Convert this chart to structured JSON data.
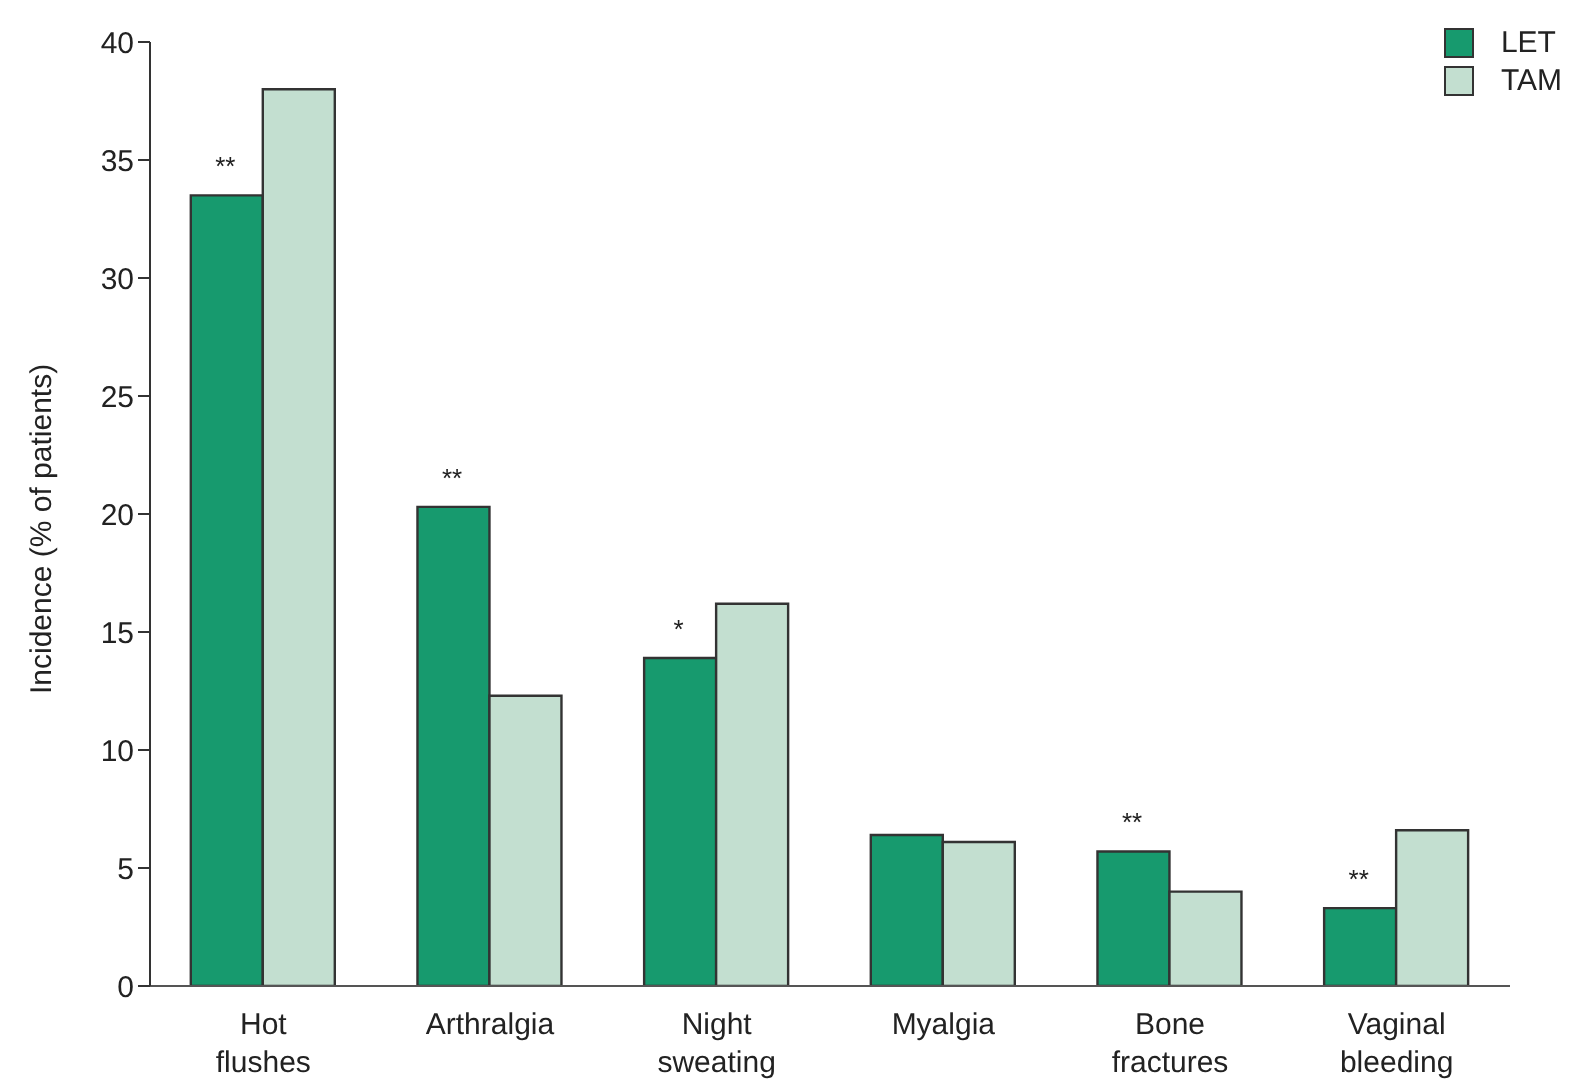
{
  "chart_data": {
    "type": "bar",
    "ylabel": "Incidence (% of patients)",
    "categories": [
      "Hot flushes",
      "Arthralgia",
      "Night sweating",
      "Myalgia",
      "Bone fractures",
      "Vaginal bleeding"
    ],
    "series": [
      {
        "name": "LET",
        "color": "#179a6e",
        "values": [
          33.5,
          20.3,
          13.9,
          6.4,
          5.7,
          3.3
        ]
      },
      {
        "name": "TAM",
        "color": "#c3dfd0",
        "values": [
          38,
          12.3,
          16.2,
          6.1,
          4.0,
          6.6
        ]
      }
    ],
    "ylim": [
      0,
      40
    ],
    "yticks": [
      0,
      5,
      10,
      15,
      20,
      25,
      30,
      35,
      40
    ],
    "grid": false,
    "legend": "top right",
    "annotations": [
      {
        "text": "**",
        "x": "Hot flushes",
        "y": 33.5
      },
      {
        "text": "**",
        "x": "Arthralgia",
        "y": 20.3
      },
      {
        "text": "*",
        "x": "Night sweating",
        "y": 13.9
      },
      {
        "text": "**",
        "x": "Bone fractures",
        "y": 5.7
      },
      {
        "text": "**",
        "x": "Vaginal bleeding",
        "y": 3.3
      }
    ]
  }
}
